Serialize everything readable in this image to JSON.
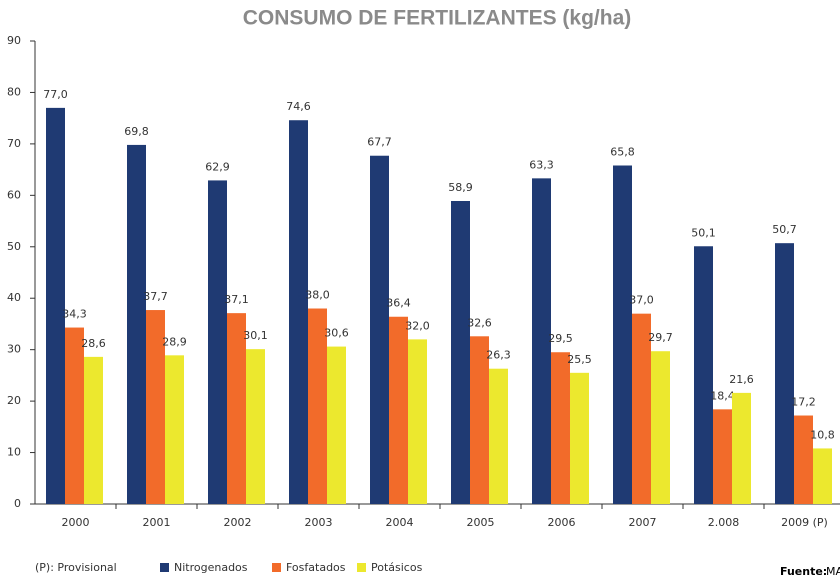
{
  "chart_data": {
    "type": "bar",
    "title": "CONSUMO DE FERTILIZANTES (kg/ha)",
    "categories": [
      "2000",
      "2001",
      "2002",
      "2003",
      "2004",
      "2005",
      "2006",
      "2007",
      "2.008",
      "2009 (P)"
    ],
    "series": [
      {
        "name": "Nitrogenados",
        "color": "#1f3a73",
        "values": [
          77.0,
          69.8,
          62.9,
          74.6,
          67.7,
          58.9,
          63.3,
          65.8,
          50.1,
          50.7
        ],
        "value_labels": [
          "77,0",
          "69,8",
          "62,9",
          "74,6",
          "67,7",
          "58,9",
          "63,3",
          "65,8",
          "50,1",
          "50,7"
        ]
      },
      {
        "name": "Fosfatados",
        "color": "#f26b2a",
        "values": [
          34.3,
          37.7,
          37.1,
          38.0,
          36.4,
          32.6,
          29.5,
          37.0,
          18.4,
          17.2
        ],
        "value_labels": [
          "34,3",
          "37,7",
          "37,1",
          "38,0",
          "36,4",
          "32,6",
          "29,5",
          "37,0",
          "18,4",
          "17,2"
        ]
      },
      {
        "name": "Potásicos",
        "color": "#ece82e",
        "values": [
          28.6,
          28.9,
          30.1,
          30.6,
          32.0,
          26.3,
          25.5,
          29.7,
          21.6,
          10.8
        ],
        "value_labels": [
          "28,6",
          "28,9",
          "30,1",
          "30,6",
          "32,0",
          "26,3",
          "25,5",
          "29,7",
          "21,6",
          "10,8"
        ]
      }
    ],
    "ylim": [
      0,
      90
    ],
    "yticks": [
      0,
      10,
      20,
      30,
      40,
      50,
      60,
      70,
      80,
      90
    ],
    "footnote": "(P): Provisional",
    "source_label": "Fuente:",
    "source": "MARM"
  }
}
